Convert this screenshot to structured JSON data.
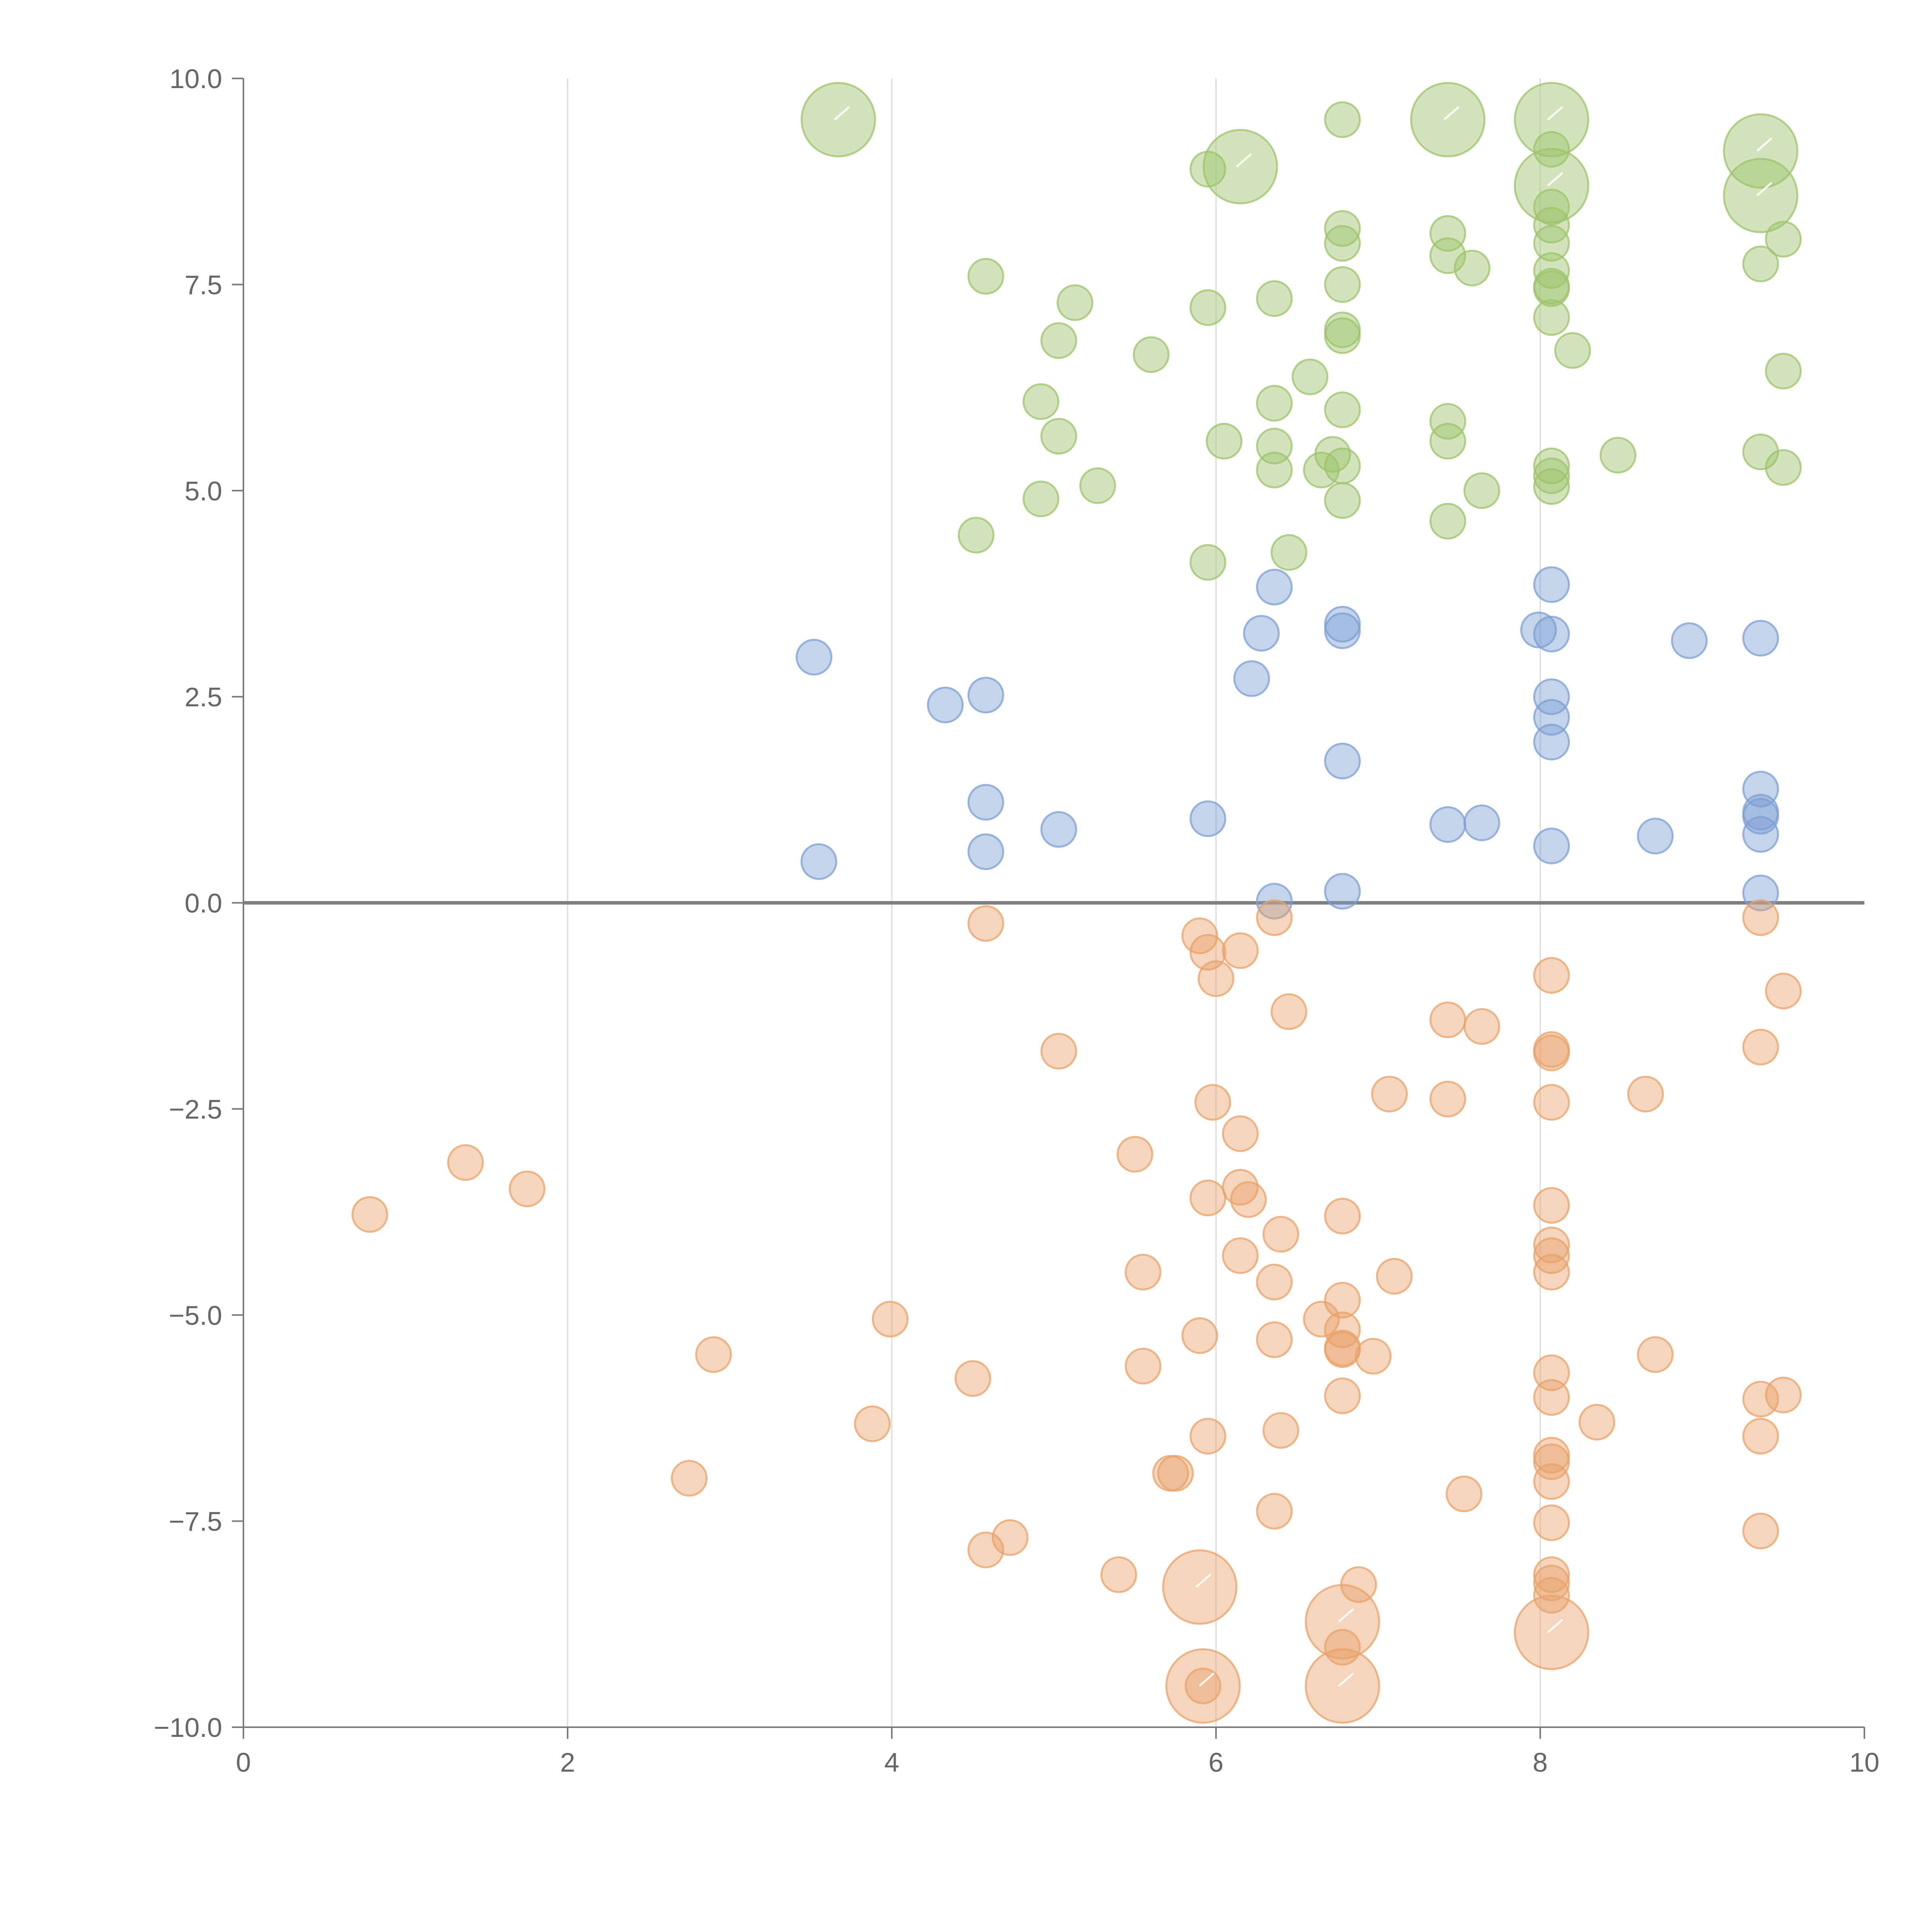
{
  "chart_data": {
    "type": "scatter",
    "title": "",
    "xlabel": "",
    "ylabel": "",
    "xlim": [
      0,
      10
    ],
    "ylim": [
      -10,
      10
    ],
    "x_ticks": [
      0,
      2,
      4,
      6,
      8,
      10
    ],
    "y_ticks": [
      -10,
      -7.5,
      -5,
      -2.5,
      0,
      2.5,
      5,
      7.5,
      10
    ],
    "x_tick_labels": [
      "0",
      "2",
      "4",
      "6",
      "8",
      "10"
    ],
    "y_tick_labels": [
      "−10.0",
      "−7.5",
      "−5.0",
      "−2.5",
      "0.0",
      "2.5",
      "5.0",
      "7.5",
      "10.0"
    ],
    "vertical_gridlines": [
      2,
      4,
      6,
      8
    ],
    "reference_line_y": 0,
    "series": [
      {
        "name": "green",
        "color": "#9dc36b",
        "points": [
          [
            3.67,
            9.5,
            2
          ],
          [
            6.78,
            9.5,
            0
          ],
          [
            7.43,
            9.5,
            2
          ],
          [
            8.07,
            9.5,
            2
          ],
          [
            9.36,
            9.12,
            2
          ],
          [
            9.36,
            8.58,
            2
          ],
          [
            5.95,
            8.9,
            0
          ],
          [
            6.15,
            8.93,
            2
          ],
          [
            8.07,
            8.7,
            2
          ],
          [
            6.78,
            8.18,
            0
          ],
          [
            7.43,
            8.12,
            0
          ],
          [
            9.5,
            8.05,
            0
          ],
          [
            6.78,
            8.0,
            0
          ],
          [
            7.43,
            7.85,
            0
          ],
          [
            8.07,
            8.0,
            0
          ],
          [
            8.07,
            8.22,
            0
          ],
          [
            8.07,
            8.44,
            0
          ],
          [
            8.07,
            9.14,
            0
          ],
          [
            9.36,
            7.75,
            0
          ],
          [
            7.58,
            7.7,
            0
          ],
          [
            8.07,
            7.67,
            0
          ],
          [
            6.78,
            7.5,
            0
          ],
          [
            8.07,
            7.48,
            0
          ],
          [
            8.07,
            7.45,
            0
          ],
          [
            4.58,
            7.6,
            0
          ],
          [
            5.13,
            7.28,
            0
          ],
          [
            5.95,
            7.22,
            0
          ],
          [
            6.36,
            7.33,
            0
          ],
          [
            8.07,
            7.1,
            0
          ],
          [
            6.78,
            6.95,
            0
          ],
          [
            6.78,
            6.88,
            0
          ],
          [
            5.03,
            6.82,
            0
          ],
          [
            5.6,
            6.65,
            0
          ],
          [
            8.2,
            6.7,
            0
          ],
          [
            9.5,
            6.45,
            0
          ],
          [
            6.58,
            6.38,
            0
          ],
          [
            4.92,
            6.08,
            0
          ],
          [
            6.36,
            6.06,
            0
          ],
          [
            6.78,
            5.98,
            0
          ],
          [
            5.03,
            5.66,
            0
          ],
          [
            6.05,
            5.6,
            0
          ],
          [
            6.36,
            5.54,
            0
          ],
          [
            7.43,
            5.84,
            0
          ],
          [
            7.43,
            5.6,
            0
          ],
          [
            6.72,
            5.44,
            0
          ],
          [
            6.78,
            5.3,
            0
          ],
          [
            6.65,
            5.25,
            0
          ],
          [
            6.36,
            5.25,
            0
          ],
          [
            8.07,
            5.3,
            0
          ],
          [
            8.07,
            5.18,
            0
          ],
          [
            8.48,
            5.43,
            0
          ],
          [
            9.36,
            5.47,
            0
          ],
          [
            9.5,
            5.28,
            0
          ],
          [
            5.27,
            5.06,
            0
          ],
          [
            8.07,
            5.05,
            0
          ],
          [
            7.64,
            5.0,
            0
          ],
          [
            4.92,
            4.9,
            0
          ],
          [
            6.78,
            4.88,
            0
          ],
          [
            7.43,
            4.63,
            0
          ],
          [
            4.52,
            4.46,
            0
          ],
          [
            6.45,
            4.25,
            0
          ],
          [
            5.95,
            4.13,
            0
          ]
        ]
      },
      {
        "name": "blue",
        "color": "#7d9fd3",
        "points": [
          [
            6.36,
            3.83,
            0
          ],
          [
            8.07,
            3.86,
            0
          ],
          [
            6.78,
            3.38,
            0
          ],
          [
            6.78,
            3.3,
            0
          ],
          [
            7.99,
            3.31,
            0
          ],
          [
            8.07,
            3.26,
            0
          ],
          [
            6.28,
            3.27,
            0
          ],
          [
            8.92,
            3.18,
            0
          ],
          [
            9.36,
            3.21,
            0
          ],
          [
            3.52,
            2.98,
            0
          ],
          [
            4.58,
            2.52,
            0
          ],
          [
            4.33,
            2.4,
            0
          ],
          [
            6.22,
            2.72,
            0
          ],
          [
            8.07,
            2.5,
            0
          ],
          [
            8.07,
            2.25,
            0
          ],
          [
            8.07,
            1.95,
            0
          ],
          [
            6.78,
            1.72,
            0
          ],
          [
            9.36,
            1.38,
            0
          ],
          [
            4.58,
            1.22,
            0
          ],
          [
            9.36,
            1.1,
            0
          ],
          [
            9.36,
            1.05,
            0
          ],
          [
            5.95,
            1.02,
            0
          ],
          [
            7.43,
            0.95,
            0
          ],
          [
            7.64,
            0.97,
            0
          ],
          [
            5.03,
            0.89,
            0
          ],
          [
            8.71,
            0.81,
            0
          ],
          [
            9.36,
            0.83,
            0
          ],
          [
            8.07,
            0.69,
            0
          ],
          [
            4.58,
            0.62,
            0
          ],
          [
            3.55,
            0.5,
            0
          ],
          [
            6.78,
            0.14,
            0
          ],
          [
            9.36,
            0.12,
            0
          ],
          [
            6.36,
            0.02,
            0
          ]
        ]
      },
      {
        "name": "orange",
        "color": "#e8a16a",
        "points": [
          [
            4.58,
            -0.25,
            0
          ],
          [
            5.9,
            -0.4,
            0
          ],
          [
            5.95,
            -0.6,
            0
          ],
          [
            6.15,
            -0.58,
            0
          ],
          [
            6.36,
            -0.18,
            0
          ],
          [
            9.36,
            -0.18,
            0
          ],
          [
            6.0,
            -0.92,
            0
          ],
          [
            8.07,
            -0.88,
            0
          ],
          [
            9.5,
            -1.07,
            0
          ],
          [
            6.45,
            -1.32,
            0
          ],
          [
            7.43,
            -1.42,
            0
          ],
          [
            7.64,
            -1.5,
            0
          ],
          [
            5.03,
            -1.8,
            0
          ],
          [
            8.07,
            -1.78,
            0
          ],
          [
            8.07,
            -1.82,
            0
          ],
          [
            9.36,
            -1.75,
            0
          ],
          [
            5.98,
            -2.42,
            0
          ],
          [
            7.07,
            -2.32,
            0
          ],
          [
            7.43,
            -2.38,
            0
          ],
          [
            8.07,
            -2.42,
            0
          ],
          [
            8.65,
            -2.32,
            0
          ],
          [
            6.15,
            -2.8,
            0
          ],
          [
            5.5,
            -3.05,
            0
          ],
          [
            1.37,
            -3.15,
            0
          ],
          [
            1.75,
            -3.47,
            0
          ],
          [
            6.15,
            -3.45,
            0
          ],
          [
            6.2,
            -3.6,
            0
          ],
          [
            5.95,
            -3.58,
            0
          ],
          [
            0.78,
            -3.78,
            0
          ],
          [
            6.78,
            -3.8,
            0
          ],
          [
            8.07,
            -3.67,
            0
          ],
          [
            6.4,
            -4.02,
            0
          ],
          [
            8.07,
            -4.15,
            0
          ],
          [
            8.07,
            -4.28,
            0
          ],
          [
            6.15,
            -4.28,
            0
          ],
          [
            5.55,
            -4.48,
            0
          ],
          [
            8.07,
            -4.48,
            0
          ],
          [
            7.1,
            -4.53,
            0
          ],
          [
            6.36,
            -4.6,
            0
          ],
          [
            6.78,
            -4.82,
            0
          ],
          [
            3.99,
            -5.05,
            0
          ],
          [
            6.65,
            -5.05,
            0
          ],
          [
            5.9,
            -5.25,
            0
          ],
          [
            6.78,
            -5.18,
            0
          ],
          [
            6.36,
            -5.3,
            0
          ],
          [
            6.78,
            -5.4,
            0
          ],
          [
            6.78,
            -5.42,
            0
          ],
          [
            6.97,
            -5.5,
            0
          ],
          [
            2.9,
            -5.48,
            0
          ],
          [
            8.71,
            -5.48,
            0
          ],
          [
            5.55,
            -5.62,
            0
          ],
          [
            8.07,
            -5.7,
            0
          ],
          [
            4.5,
            -5.77,
            0
          ],
          [
            6.78,
            -5.98,
            0
          ],
          [
            8.07,
            -6.0,
            0
          ],
          [
            9.36,
            -6.02,
            0
          ],
          [
            9.5,
            -5.97,
            0
          ],
          [
            3.88,
            -6.32,
            0
          ],
          [
            8.35,
            -6.3,
            0
          ],
          [
            6.4,
            -6.4,
            0
          ],
          [
            5.95,
            -6.47,
            0
          ],
          [
            9.36,
            -6.47,
            0
          ],
          [
            8.07,
            -6.7,
            0
          ],
          [
            8.07,
            -6.78,
            0
          ],
          [
            5.75,
            -6.92,
            0
          ],
          [
            5.72,
            -6.92,
            0
          ],
          [
            2.75,
            -6.98,
            0
          ],
          [
            8.07,
            -7.02,
            0
          ],
          [
            7.53,
            -7.17,
            0
          ],
          [
            6.36,
            -7.38,
            0
          ],
          [
            8.07,
            -7.52,
            0
          ],
          [
            9.36,
            -7.62,
            0
          ],
          [
            4.73,
            -7.7,
            0
          ],
          [
            4.58,
            -7.85,
            0
          ],
          [
            5.4,
            -8.15,
            0
          ],
          [
            8.07,
            -8.15,
            0
          ],
          [
            8.07,
            -8.25,
            0
          ],
          [
            8.07,
            -8.4,
            0
          ],
          [
            6.88,
            -8.27,
            0
          ],
          [
            5.9,
            -8.3,
            2
          ],
          [
            6.78,
            -8.72,
            2
          ],
          [
            8.07,
            -8.85,
            2
          ],
          [
            6.78,
            -9.03,
            0
          ],
          [
            5.92,
            -9.5,
            2
          ],
          [
            5.92,
            -9.5,
            0
          ],
          [
            6.78,
            -9.5,
            2
          ]
        ]
      }
    ]
  }
}
